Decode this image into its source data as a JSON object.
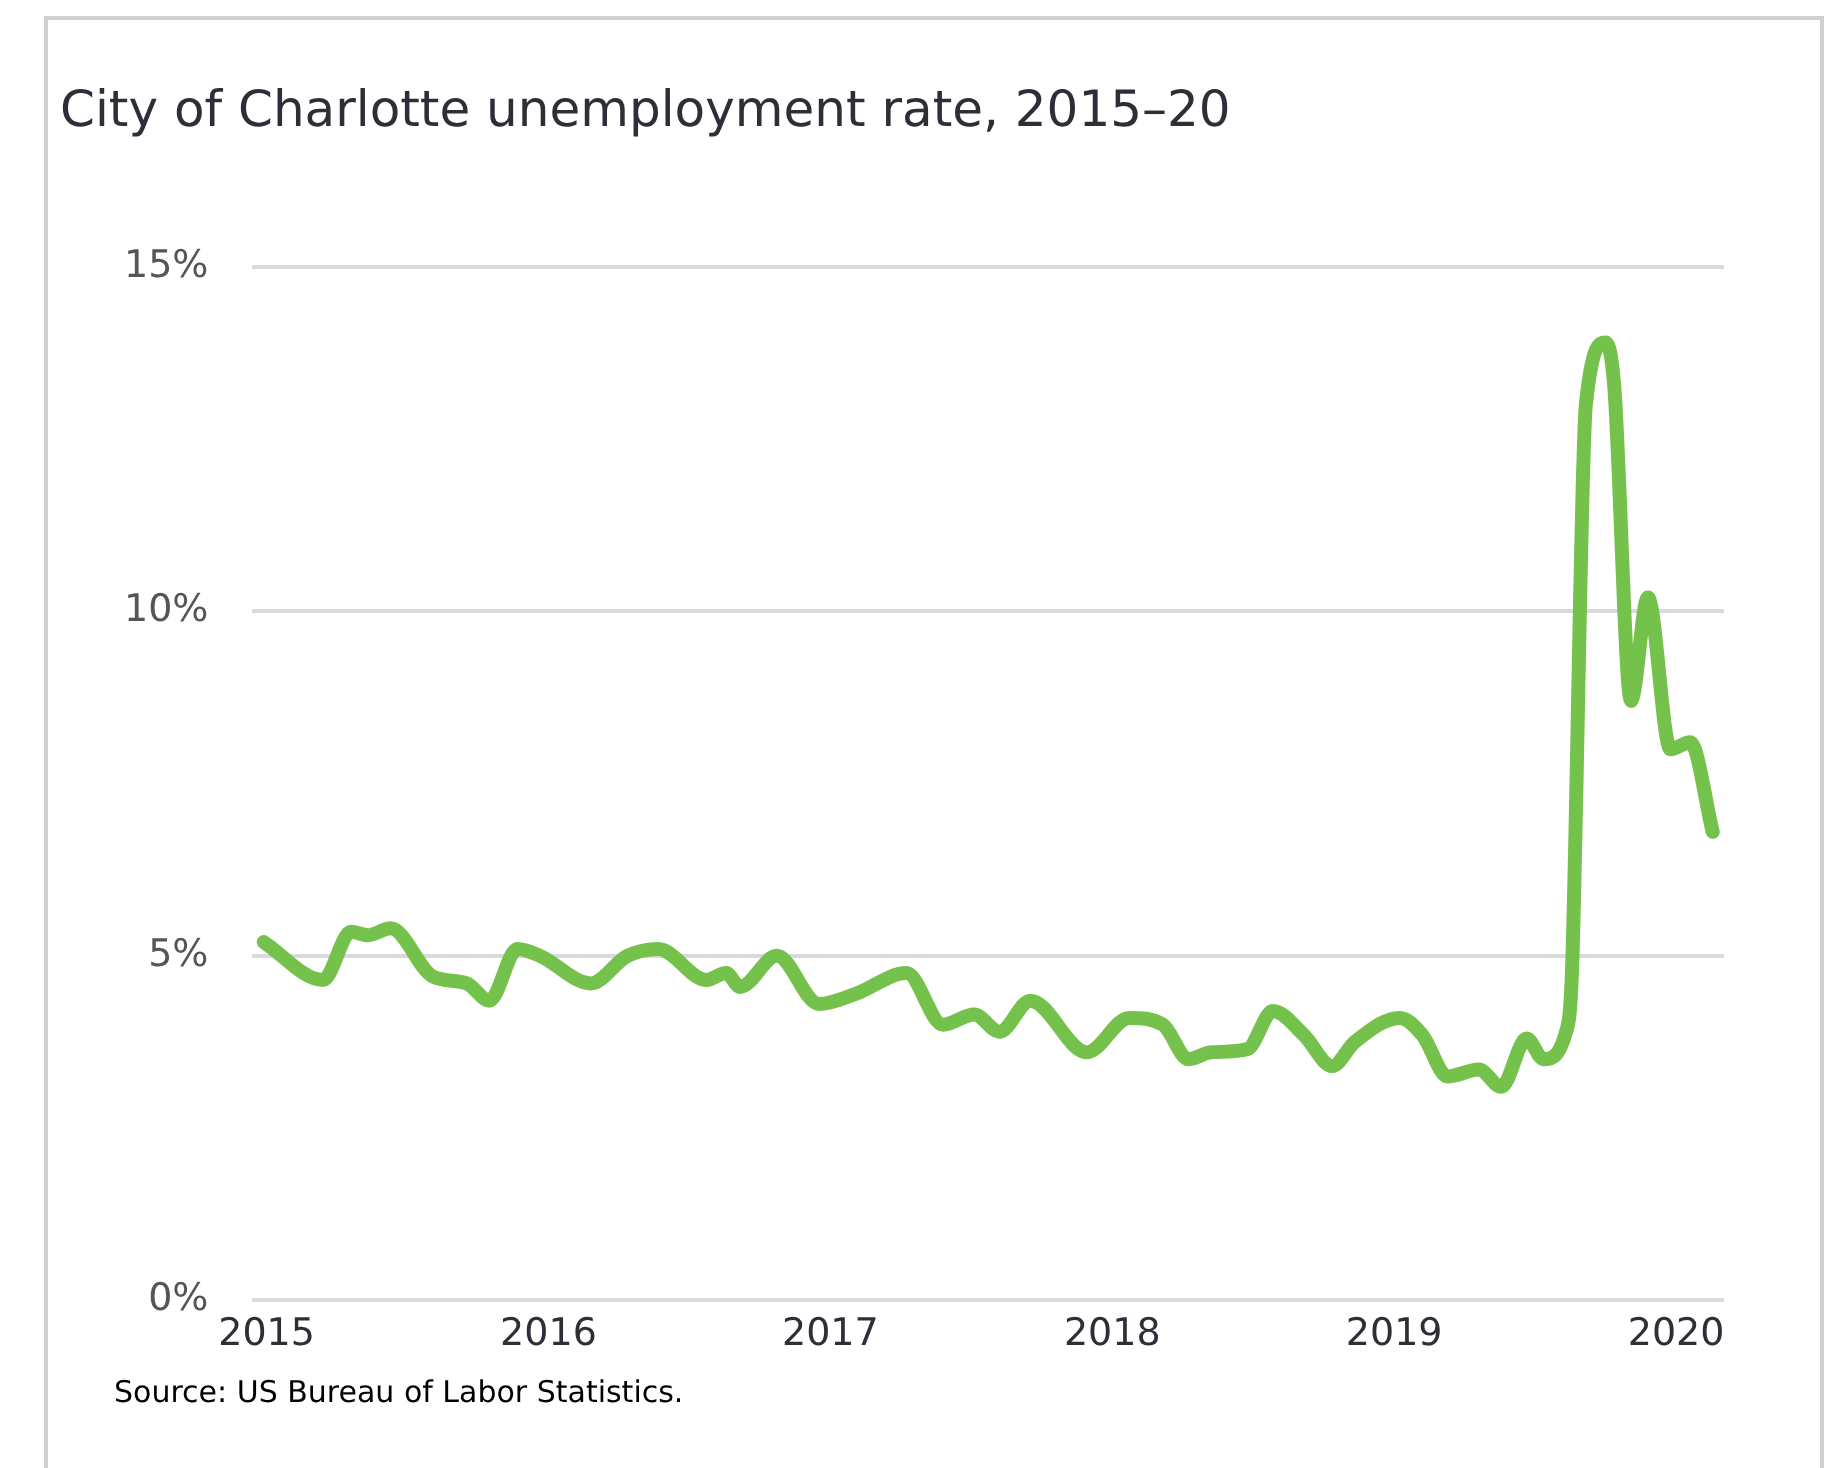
{
  "chart_data": {
    "type": "line",
    "title": "City of Charlotte unemployment rate, 2015–20",
    "annotations": [
      "Source: US Bureau of Labor Statistics."
    ],
    "x": [
      2014.99,
      2015.2,
      2015.3,
      2015.36,
      2015.44,
      2015.59,
      2015.71,
      2015.79,
      2015.89,
      2015.97,
      2016.15,
      2016.28,
      2016.39,
      2016.56,
      2016.63,
      2016.68,
      2016.81,
      2016.96,
      2017.09,
      2017.27,
      2017.4,
      2017.51,
      2017.6,
      2017.71,
      2017.91,
      2018.06,
      2018.18,
      2018.27,
      2018.35,
      2018.48,
      2018.57,
      2018.68,
      2018.78,
      2018.86,
      2019.02,
      2019.1,
      2019.19,
      2019.3,
      2019.38,
      2019.47,
      2019.53,
      2019.61,
      2019.63,
      2019.68,
      2019.75,
      2019.78,
      2019.84,
      2019.9,
      2019.98,
      2020.05,
      2020.13
    ],
    "values": [
      5.2,
      4.65,
      5.35,
      5.3,
      5.4,
      4.7,
      4.6,
      4.35,
      5.1,
      5.0,
      4.6,
      5.0,
      5.1,
      4.65,
      4.75,
      4.55,
      5.0,
      4.3,
      4.45,
      4.75,
      4.0,
      4.15,
      3.9,
      4.35,
      3.6,
      4.1,
      4.0,
      3.5,
      3.6,
      3.65,
      4.2,
      3.85,
      3.4,
      3.75,
      4.1,
      3.85,
      3.25,
      3.35,
      3.1,
      3.8,
      3.5,
      3.9,
      4.7,
      13.0,
      13.9,
      13.3,
      8.7,
      10.2,
      8.0,
      8.1,
      6.8
    ],
    "color": "#74c14b",
    "marker": "none",
    "grid": "y",
    "legend": false,
    "xlim": [
      2014.95,
      2020.17
    ],
    "xticks": [
      2015,
      2016,
      2017,
      2018,
      2019,
      2020
    ],
    "ylim": [
      0,
      15
    ],
    "yticks": [
      {
        "value": 0,
        "label": "0%"
      },
      {
        "value": 5,
        "label": "5%"
      },
      {
        "value": 10,
        "label": "10%"
      },
      {
        "value": 15,
        "label": "15%"
      }
    ]
  }
}
